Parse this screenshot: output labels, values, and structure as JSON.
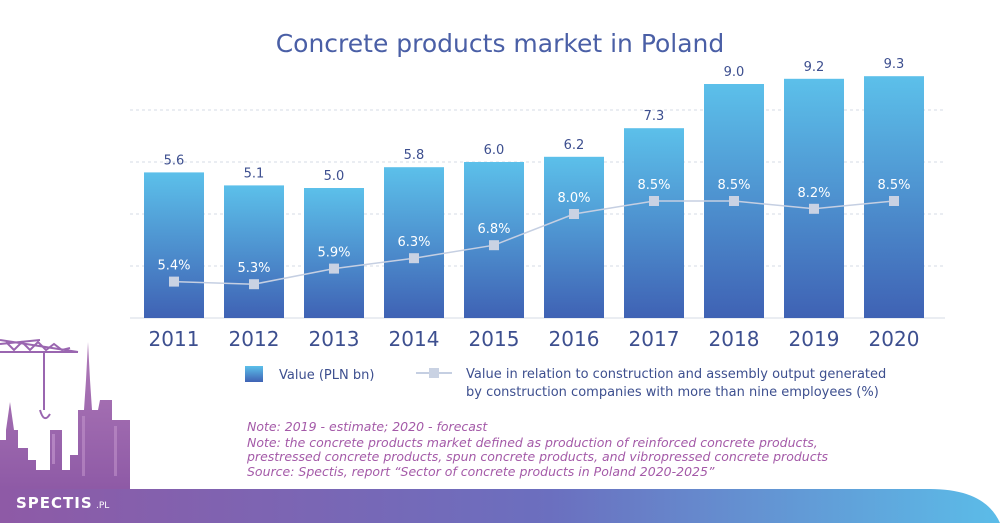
{
  "chart_data": {
    "type": "bar",
    "title": "Concrete products market in Poland",
    "categories": [
      "2011",
      "2012",
      "2013",
      "2014",
      "2015",
      "2016",
      "2017",
      "2018",
      "2019",
      "2020"
    ],
    "series": [
      {
        "name": "Value (PLN bn)",
        "type": "bar",
        "values": [
          5.6,
          5.1,
          5.0,
          5.8,
          6.0,
          6.2,
          7.3,
          9.0,
          9.2,
          9.3
        ],
        "labels": [
          "5.6",
          "5.1",
          "5.0",
          "5.8",
          "6.0",
          "6.2",
          "7.3",
          "9.0",
          "9.2",
          "9.3"
        ]
      },
      {
        "name": "Value in relation to construction and assembly output generated by construction companies with more than nine employees (%)",
        "type": "line",
        "values": [
          5.4,
          5.3,
          5.9,
          6.3,
          6.8,
          8.0,
          8.5,
          8.5,
          8.2,
          8.5
        ],
        "labels": [
          "5.4%",
          "5.3%",
          "5.9%",
          "6.3%",
          "6.8%",
          "8.0%",
          "8.5%",
          "8.5%",
          "8.2%",
          "8.5%"
        ]
      }
    ],
    "ylim": [
      0,
      10
    ],
    "grid": true,
    "legend_position": "bottom",
    "legend": {
      "bar_label": "Value (PLN bn)",
      "line_label_1": "Value in relation to construction and assembly output generated",
      "line_label_2": "by construction companies with more than nine employees (%)"
    },
    "notes": [
      "Note: 2019 - estimate; 2020 - forecast",
      "Note: the concrete products market defined as production of reinforced concrete products,",
      "prestressed concrete products, spun concrete products, and vibropressed concrete products",
      "Source: Spectis, report “Sector of concrete products in Poland 2020-2025”"
    ],
    "colors": {
      "bar_top": "#5cc0ea",
      "bar_bottom": "#3f62b4",
      "line": "#c5cfe2",
      "marker": "#c9d2e3",
      "title": "#4a5fa6",
      "note": "#a45aa8",
      "footer_start": "#8e5aa6",
      "footer_end": "#5bbce8"
    }
  },
  "branding": {
    "logo": "SPECTIS",
    "logo_suffix": ".PL"
  }
}
